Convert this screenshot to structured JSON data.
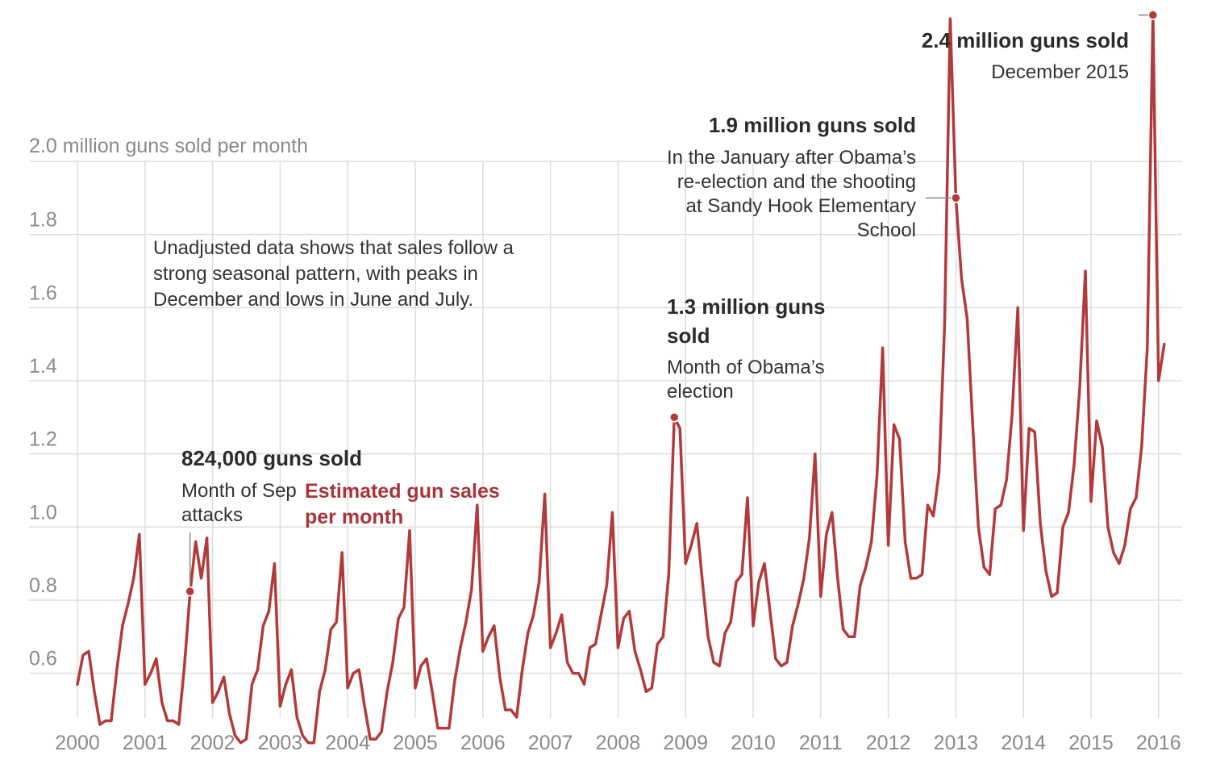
{
  "chart_data": {
    "type": "line",
    "unit_label": "2.0 million guns sold per month",
    "yticks": [
      "1.8",
      "1.6",
      "1.4",
      "1.2",
      "1.0",
      "0.8",
      "0.6"
    ],
    "ylim": [
      0.5,
      2.0
    ],
    "xticks": [
      "2000",
      "2001",
      "2002",
      "2003",
      "2004",
      "2005",
      "2006",
      "2007",
      "2008",
      "2009",
      "2010",
      "2011",
      "2012",
      "2013",
      "2014",
      "2015",
      "2016"
    ],
    "series": [
      {
        "name": "Estimated gun sales per month",
        "color": "#b33a3a",
        "start_year": 2000,
        "values": [
          0.57,
          0.65,
          0.66,
          0.55,
          0.46,
          0.47,
          0.47,
          0.61,
          0.73,
          0.79,
          0.86,
          0.98,
          0.57,
          0.6,
          0.64,
          0.52,
          0.47,
          0.47,
          0.46,
          0.62,
          0.82,
          0.96,
          0.86,
          0.97,
          0.52,
          0.55,
          0.59,
          0.49,
          0.43,
          0.41,
          0.42,
          0.57,
          0.61,
          0.73,
          0.77,
          0.9,
          0.51,
          0.57,
          0.61,
          0.48,
          0.43,
          0.41,
          0.41,
          0.55,
          0.61,
          0.72,
          0.74,
          0.93,
          0.56,
          0.6,
          0.61,
          0.51,
          0.42,
          0.42,
          0.44,
          0.55,
          0.63,
          0.75,
          0.78,
          0.99,
          0.56,
          0.62,
          0.64,
          0.55,
          0.45,
          0.45,
          0.45,
          0.58,
          0.67,
          0.74,
          0.83,
          1.06,
          0.66,
          0.7,
          0.73,
          0.59,
          0.5,
          0.5,
          0.48,
          0.61,
          0.71,
          0.76,
          0.85,
          1.09,
          0.67,
          0.71,
          0.76,
          0.63,
          0.6,
          0.6,
          0.57,
          0.67,
          0.68,
          0.76,
          0.84,
          1.04,
          0.67,
          0.75,
          0.77,
          0.66,
          0.61,
          0.55,
          0.56,
          0.68,
          0.7,
          0.87,
          1.3,
          1.27,
          0.9,
          0.95,
          1.01,
          0.85,
          0.7,
          0.63,
          0.62,
          0.71,
          0.74,
          0.85,
          0.87,
          1.08,
          0.73,
          0.85,
          0.9,
          0.77,
          0.64,
          0.62,
          0.63,
          0.73,
          0.79,
          0.86,
          0.97,
          1.2,
          0.81,
          0.98,
          1.04,
          0.86,
          0.72,
          0.7,
          0.7,
          0.84,
          0.89,
          0.96,
          1.14,
          1.49,
          0.95,
          1.28,
          1.24,
          0.96,
          0.86,
          0.86,
          0.87,
          1.06,
          1.03,
          1.15,
          1.55,
          2.39,
          1.9,
          1.68,
          1.57,
          1.28,
          1.0,
          0.89,
          0.87,
          1.05,
          1.06,
          1.13,
          1.31,
          1.6,
          0.99,
          1.27,
          1.26,
          1.01,
          0.88,
          0.81,
          0.82,
          1.0,
          1.04,
          1.17,
          1.38,
          1.7,
          1.07,
          1.29,
          1.22,
          1.0,
          0.93,
          0.9,
          0.95,
          1.05,
          1.08,
          1.22,
          1.49,
          2.4,
          1.4,
          1.5
        ]
      }
    ],
    "grid": true,
    "annotations": {
      "seasonal_note": [
        "Unadjusted data shows that sales follow a",
        "strong seasonal pattern, with peaks in",
        "December and lows in June and July."
      ],
      "sept11": {
        "headline": "824,000 guns sold",
        "lines": [
          "Month of Sep",
          "attacks"
        ],
        "date": "2001-09",
        "value": 0.824
      },
      "obama_election": {
        "headline_lines": [
          "1.3 million guns",
          "sold"
        ],
        "lines": [
          "Month of Obama’s",
          "election"
        ],
        "date": "2008-11",
        "value": 1.3
      },
      "sandy_hook": {
        "headline": "1.9 million guns sold",
        "lines": [
          "In the January after Obama’s",
          "re-election and the shooting",
          "at Sandy Hook Elementary",
          "School"
        ],
        "date": "2013-01",
        "value": 1.9
      },
      "dec2015": {
        "headline": "2.4 million guns sold",
        "lines": [
          "December 2015"
        ],
        "date": "2015-12",
        "value": 2.4
      }
    },
    "series_label_lines": [
      "Estimated gun sales",
      "per month"
    ]
  }
}
